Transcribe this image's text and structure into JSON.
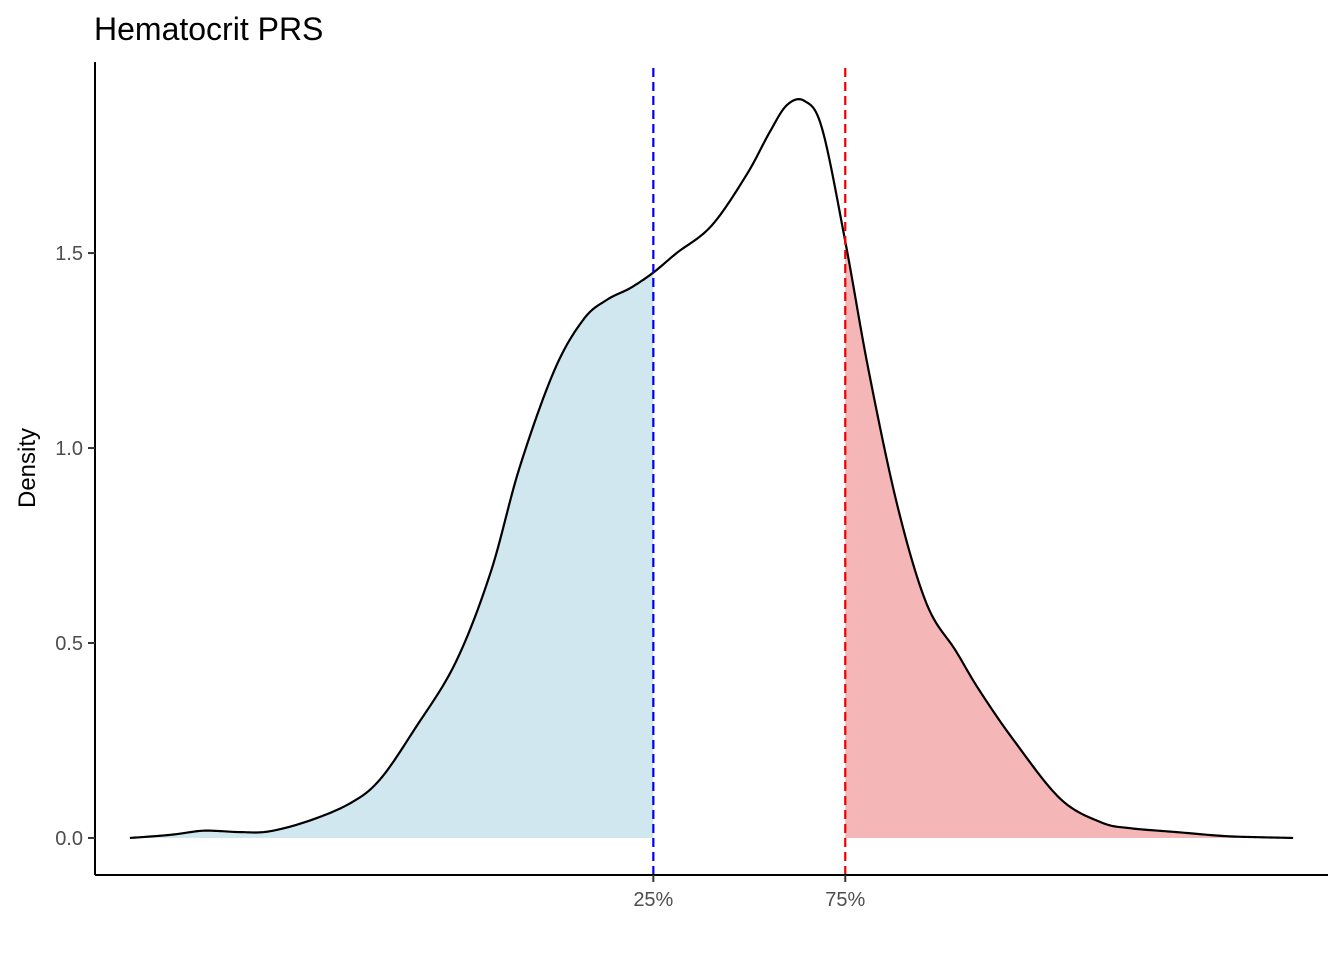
{
  "chart_data": {
    "type": "area",
    "title": "Hematocrit PRS",
    "xlabel": "",
    "ylabel": "Density",
    "xlim": [
      -0.03,
      1.03
    ],
    "ylim": [
      -0.095,
      1.99
    ],
    "y_ticks": [
      0.0,
      0.5,
      1.0,
      1.5
    ],
    "y_tick_labels": [
      "0.0",
      "0.5",
      "1.0",
      "1.5"
    ],
    "x_ticks": [
      0.45,
      0.615
    ],
    "x_tick_labels": [
      "25%",
      "75%"
    ],
    "grid": false,
    "legend": "none",
    "quantiles": [
      {
        "label": "25%",
        "x": 0.45,
        "color": "#0000ee"
      },
      {
        "label": "75%",
        "x": 0.615,
        "color": "#ee0000"
      }
    ],
    "fill_colors": {
      "lower": "#d1e7ef",
      "upper": "#f4b6b6"
    },
    "series": [
      {
        "x": [
          0.0,
          0.035,
          0.06,
          0.075,
          0.095,
          0.12,
          0.155,
          0.19,
          0.215,
          0.245,
          0.28,
          0.31,
          0.335,
          0.365,
          0.39,
          0.41,
          0.43,
          0.45,
          0.47,
          0.5,
          0.53,
          0.55,
          0.565,
          0.58,
          0.595,
          0.615,
          0.635,
          0.66,
          0.685,
          0.71,
          0.73,
          0.76,
          0.8,
          0.835,
          0.86,
          0.9,
          0.94,
          0.97,
          1.0
        ],
        "y": [
          0.0,
          0.008,
          0.018,
          0.018,
          0.015,
          0.017,
          0.045,
          0.09,
          0.15,
          0.28,
          0.45,
          0.68,
          0.95,
          1.2,
          1.33,
          1.38,
          1.41,
          1.45,
          1.5,
          1.57,
          1.7,
          1.81,
          1.88,
          1.89,
          1.82,
          1.53,
          1.2,
          0.85,
          0.6,
          0.48,
          0.38,
          0.25,
          0.1,
          0.04,
          0.025,
          0.015,
          0.005,
          0.002,
          0.0
        ]
      }
    ]
  }
}
